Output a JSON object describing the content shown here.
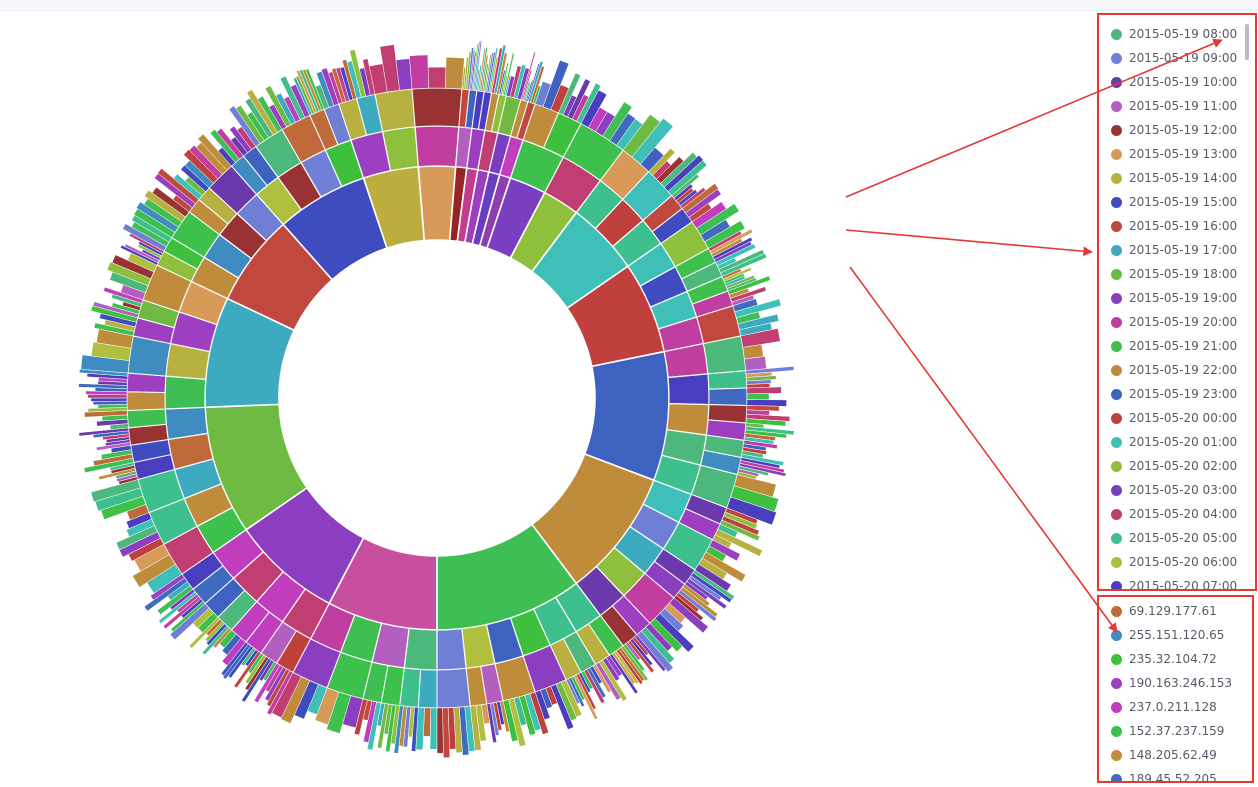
{
  "chart_data": {
    "type": "sunburst",
    "rings": 4,
    "ring1": [
      {
        "color": "#c84f9e",
        "value": 6
      },
      {
        "color": "#8c3ec0",
        "value": 6
      },
      {
        "color": "#6fba43",
        "value": 7
      },
      {
        "color": "#3eaac0",
        "value": 6
      },
      {
        "color": "#c0483e",
        "value": 5
      },
      {
        "color": "#3e4cc0",
        "value": 5
      },
      {
        "color": "#bcad3e",
        "value": 3
      },
      {
        "color": "#d79a59",
        "value": 2
      },
      {
        "color": "#962626",
        "value": 0.6
      },
      {
        "color": "#c43d8c",
        "value": 0.6
      },
      {
        "color": "#9d3ec0",
        "value": 0.6
      },
      {
        "color": "#6a3ec0",
        "value": 0.6
      },
      {
        "color": "#8f3eb0",
        "value": 0.6
      },
      {
        "color": "#7a3ec0",
        "value": 2
      },
      {
        "color": "#8ec03e",
        "value": 2
      },
      {
        "color": "#3ec0b8",
        "value": 4
      },
      {
        "color": "#c0403e",
        "value": 5
      },
      {
        "color": "#3e62c0",
        "value": 7
      },
      {
        "color": "#be8c3a",
        "value": 7
      },
      {
        "color": "#3fbf53",
        "value": 8
      }
    ],
    "legend_top": [
      {
        "label": "2015-05-19 08:00",
        "color": "#4cb87c"
      },
      {
        "label": "2015-05-19 09:00",
        "color": "#6f7fd6"
      },
      {
        "label": "2015-05-19 10:00",
        "color": "#6a3aad"
      },
      {
        "label": "2015-05-19 11:00",
        "color": "#b35fbf"
      },
      {
        "label": "2015-05-19 12:00",
        "color": "#993333"
      },
      {
        "label": "2015-05-19 13:00",
        "color": "#d79a59"
      },
      {
        "label": "2015-05-19 14:00",
        "color": "#b8b040"
      },
      {
        "label": "2015-05-19 15:00",
        "color": "#3e4cc0"
      },
      {
        "label": "2015-05-19 16:00",
        "color": "#c0483e"
      },
      {
        "label": "2015-05-19 17:00",
        "color": "#3eaac0"
      },
      {
        "label": "2015-05-19 18:00",
        "color": "#6fba43"
      },
      {
        "label": "2015-05-19 19:00",
        "color": "#8c3ec0"
      },
      {
        "label": "2015-05-19 20:00",
        "color": "#c03ea0"
      },
      {
        "label": "2015-05-19 21:00",
        "color": "#3fbf53"
      },
      {
        "label": "2015-05-19 22:00",
        "color": "#be8c3a"
      },
      {
        "label": "2015-05-19 23:00",
        "color": "#3e62c0"
      },
      {
        "label": "2015-05-20 00:00",
        "color": "#c0403e"
      },
      {
        "label": "2015-05-20 01:00",
        "color": "#3ec0b8"
      },
      {
        "label": "2015-05-20 02:00",
        "color": "#8ec03e"
      },
      {
        "label": "2015-05-20 03:00",
        "color": "#7a3ec0"
      },
      {
        "label": "2015-05-20 04:00",
        "color": "#c03e72"
      },
      {
        "label": "2015-05-20 05:00",
        "color": "#3ec08e"
      },
      {
        "label": "2015-05-20 06:00",
        "color": "#b0c03e"
      },
      {
        "label": "2015-05-20 07:00",
        "color": "#4a3ec0"
      }
    ],
    "legend_bottom": [
      {
        "label": "69.129.177.61",
        "color": "#be6a3a"
      },
      {
        "label": "255.151.120.65",
        "color": "#3e8cc0"
      },
      {
        "label": "235.32.104.72",
        "color": "#3fbf3e"
      },
      {
        "label": "190.163.246.153",
        "color": "#9e3ec0"
      },
      {
        "label": "237.0.211.128",
        "color": "#c03ebe"
      },
      {
        "label": "152.37.237.159",
        "color": "#3ec04c"
      },
      {
        "label": "148.205.62.49",
        "color": "#be8c3a"
      },
      {
        "label": "189.45.52.205",
        "color": "#3e6ac0"
      }
    ]
  },
  "annotation_color": "#e53935"
}
